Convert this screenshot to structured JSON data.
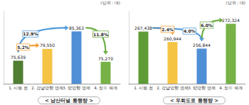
{
  "chart_data": [
    {
      "type": "bar",
      "title": "< 남산터널 통행량 >",
      "ylabel": "(단위 : 대)",
      "categories": [
        "1. 시행 전",
        "2. 강남방향 면제",
        "3. 양방향 면제",
        "4. 징수 재개"
      ],
      "values": [
        75639,
        79550,
        85363,
        75270
      ],
      "value_labels": [
        "75,639",
        "79,550",
        "85,363",
        "75,270"
      ],
      "colors": [
        "#507e32",
        "#f5c445",
        "#4f8fd6",
        "#76b246"
      ],
      "ylim": [
        68000,
        92000
      ],
      "data_labels": true,
      "tick_labels": "x",
      "annotations": [
        {
          "text": "5.2%",
          "from": "1. 시행 전",
          "to": "2. 강남방향 면제",
          "color": "#f2a036"
        },
        {
          "text": "12.9%",
          "from": "1. 시행 전",
          "to": "3. 양방향 면제",
          "color": "#4f9bdc"
        },
        {
          "text": "11.8%",
          "from": "3. 양방향 면제",
          "to": "4. 징수 재개",
          "color": "#6fae45"
        }
      ]
    },
    {
      "type": "bar",
      "title": "< 우회도로 통행량 >",
      "ylabel": "(단위 : 대)",
      "categories": [
        "1. 시행 전",
        "2. 강남방향 면제",
        "3. 양방향 면제",
        "4. 징수 재개"
      ],
      "values": [
        267438,
        260944,
        256844,
        272324
      ],
      "value_labels": [
        "267,438",
        "260,944",
        "256,844",
        "272,324"
      ],
      "colors": [
        "#5f9c38",
        "#f5c445",
        "#4f8fd6",
        "#76b246"
      ],
      "ylim": [
        235000,
        280000
      ],
      "data_labels": true,
      "tick_labels": "x",
      "annotations": [
        {
          "text": "2.4%",
          "from": "1. 시행 전",
          "to": "2. 강남방향 면제",
          "color": "#f2a036"
        },
        {
          "text": "4.0%",
          "from": "1. 시행 전",
          "to": "3. 양방향 면제",
          "color": "#4f9bdc"
        },
        {
          "text": "6.0%",
          "from": "3. 양방향 면제",
          "to": "4. 징수 재개",
          "color": "#6fae45"
        }
      ]
    }
  ]
}
